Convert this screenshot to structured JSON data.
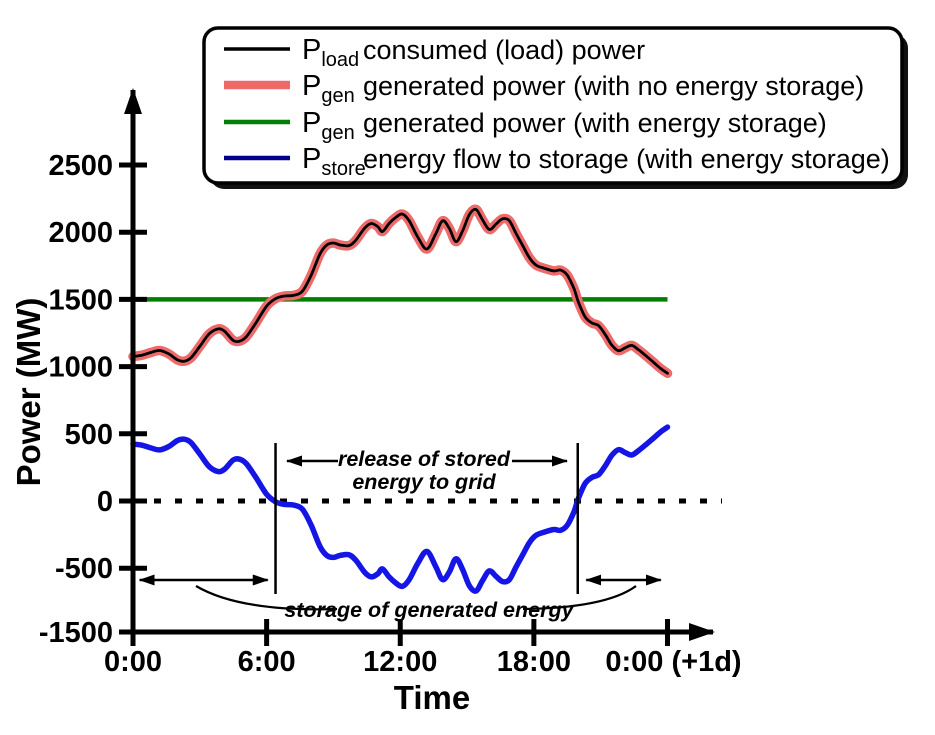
{
  "figure": {
    "xlabel": "Time",
    "ylabel": "Power (MW)"
  },
  "legend": {
    "items": [
      {
        "p": "P",
        "sub": "load",
        "desc": "consumed (load) power",
        "color": "#000000"
      },
      {
        "p": "P",
        "sub": "gen",
        "desc": "generated power (with no energy storage)",
        "color": "#ee6a6a"
      },
      {
        "p": "P",
        "sub": "gen",
        "desc": "generated power (with energy storage)",
        "color": "#007f00"
      },
      {
        "p": "P",
        "sub": "store",
        "desc": "energy flow to storage (with energy storage)",
        "color": "#00008b"
      }
    ]
  },
  "annotations": {
    "release_line1": "release of stored",
    "release_line2": "energy to grid",
    "storage": "storage of generated energy"
  },
  "chart_data": {
    "type": "line",
    "title": "",
    "xlabel": "Time",
    "ylabel": "Power (MW)",
    "x_unit": "hours",
    "xlim": [
      0,
      24
    ],
    "ylim_mw": [
      -1500,
      2500
    ],
    "grid": false,
    "legend_position": "top",
    "x_ticks": [
      {
        "t": 0,
        "label": "0:00"
      },
      {
        "t": 6,
        "label": "6:00"
      },
      {
        "t": 12,
        "label": "12:00"
      },
      {
        "t": 18,
        "label": "18:00"
      },
      {
        "t": 24,
        "label": "0:00 (+1d)",
        "label_dx": 6
      }
    ],
    "y_ticks": [
      {
        "mw": 2500,
        "label": "2500"
      },
      {
        "mw": 2000,
        "label": "2000"
      },
      {
        "mw": 1500,
        "label": "1500"
      },
      {
        "mw": 1000,
        "label": "1000"
      },
      {
        "mw": 500,
        "label": "500"
      },
      {
        "mw": 0,
        "label": "0"
      },
      {
        "mw": -500,
        "label": "-500"
      },
      {
        "mw": -1500,
        "label": "-1500",
        "plot_at_mw": -975,
        "axis_break": true
      }
    ],
    "zero_line_dotted": true,
    "gen_with_storage_level_mw": 1500,
    "store_rule": "P_store = P_gen(1500) - P_load",
    "release_span_hours": [
      6.4,
      19.97
    ],
    "storage_spans_hours": [
      [
        0.3,
        6.05
      ],
      [
        20.35,
        23.7
      ]
    ],
    "colors": {
      "load_line": "#000000",
      "gen_no_storage_outline": "#ee6a6a",
      "gen_with_storage": "#007f00",
      "store_curve": "#1515e6",
      "store_legend": "#00008b"
    },
    "series": [
      {
        "name": "P_load",
        "desc": "consumed (load) power"
      },
      {
        "name": "P_gen (no storage)",
        "desc": "identical curve to P_load, thick red outline"
      },
      {
        "name": "P_gen (with storage)",
        "desc": "constant 1500 MW"
      },
      {
        "name": "P_store",
        "desc": "1500 minus P_load"
      }
    ],
    "load_points_t_mw": [
      [
        0,
        1075
      ],
      [
        0.4,
        1085
      ],
      [
        0.8,
        1105
      ],
      [
        1.2,
        1120
      ],
      [
        1.6,
        1095
      ],
      [
        2,
        1050
      ],
      [
        2.3,
        1040
      ],
      [
        2.6,
        1065
      ],
      [
        3,
        1150
      ],
      [
        3.4,
        1240
      ],
      [
        3.8,
        1280
      ],
      [
        4.1,
        1265
      ],
      [
        4.5,
        1195
      ],
      [
        4.8,
        1190
      ],
      [
        5.1,
        1225
      ],
      [
        5.5,
        1320
      ],
      [
        6,
        1450
      ],
      [
        6.4,
        1505
      ],
      [
        6.8,
        1525
      ],
      [
        7.2,
        1530
      ],
      [
        7.6,
        1560
      ],
      [
        8,
        1680
      ],
      [
        8.4,
        1840
      ],
      [
        8.7,
        1905
      ],
      [
        9,
        1920
      ],
      [
        9.3,
        1905
      ],
      [
        9.7,
        1900
      ],
      [
        10,
        1940
      ],
      [
        10.4,
        2030
      ],
      [
        10.7,
        2065
      ],
      [
        11,
        2040
      ],
      [
        11.2,
        2005
      ],
      [
        11.5,
        2065
      ],
      [
        11.8,
        2110
      ],
      [
        12.1,
        2135
      ],
      [
        12.4,
        2085
      ],
      [
        12.8,
        1960
      ],
      [
        13.2,
        1875
      ],
      [
        13.6,
        1990
      ],
      [
        13.9,
        2085
      ],
      [
        14.2,
        2030
      ],
      [
        14.5,
        1930
      ],
      [
        14.8,
        2010
      ],
      [
        15.1,
        2130
      ],
      [
        15.4,
        2170
      ],
      [
        15.7,
        2090
      ],
      [
        16,
        2020
      ],
      [
        16.3,
        2060
      ],
      [
        16.6,
        2100
      ],
      [
        16.9,
        2085
      ],
      [
        17.2,
        1990
      ],
      [
        17.5,
        1900
      ],
      [
        17.8,
        1810
      ],
      [
        18.1,
        1755
      ],
      [
        18.5,
        1730
      ],
      [
        18.9,
        1712
      ],
      [
        19.2,
        1718
      ],
      [
        19.5,
        1680
      ],
      [
        19.8,
        1580
      ],
      [
        20,
        1480
      ],
      [
        20.3,
        1370
      ],
      [
        20.6,
        1325
      ],
      [
        20.9,
        1305
      ],
      [
        21.2,
        1240
      ],
      [
        21.5,
        1160
      ],
      [
        21.8,
        1118
      ],
      [
        22.1,
        1140
      ],
      [
        22.4,
        1158
      ],
      [
        22.7,
        1125
      ],
      [
        23,
        1085
      ],
      [
        23.4,
        1028
      ],
      [
        23.7,
        985
      ],
      [
        24,
        950
      ]
    ]
  }
}
